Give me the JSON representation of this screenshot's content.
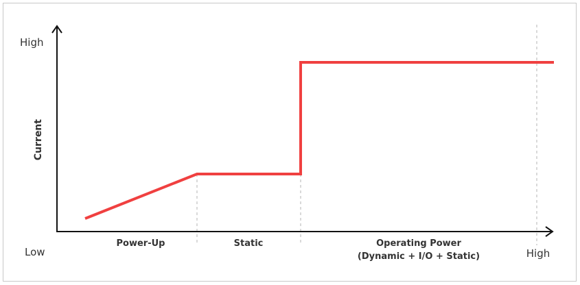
{
  "y_axis": {
    "label": "Current",
    "top_label": "High",
    "bottom_label": "Low"
  },
  "x_axis": {
    "end_label": "High"
  },
  "regions": [
    {
      "label": "Power-Up"
    },
    {
      "label": "Static"
    },
    {
      "label_line1": "Operating Power",
      "label_line2": "(Dynamic + I/O + Static)"
    }
  ],
  "colors": {
    "curve": "#f04040",
    "axis": "#111111",
    "divider": "#c0c0c0",
    "text": "#333333"
  }
}
